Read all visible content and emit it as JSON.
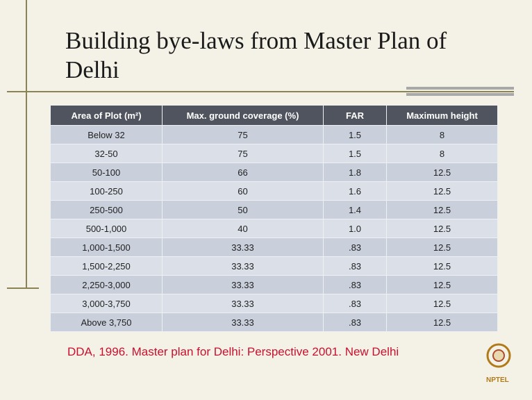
{
  "title": "Building bye-laws from Master Plan of Delhi",
  "table": {
    "header": [
      "Area of Plot (m²)",
      "Max. ground coverage (%)",
      "FAR",
      "Maximum height"
    ],
    "rows": [
      [
        "Below 32",
        "75",
        "1.5",
        "8"
      ],
      [
        "32-50",
        "75",
        "1.5",
        "8"
      ],
      [
        "50-100",
        "66",
        "1.8",
        "12.5"
      ],
      [
        "100-250",
        "60",
        "1.6",
        "12.5"
      ],
      [
        "250-500",
        "50",
        "1.4",
        "12.5"
      ],
      [
        "500-1,000",
        "40",
        "1.0",
        "12.5"
      ],
      [
        "1,000-1,500",
        "33.33",
        ".83",
        "12.5"
      ],
      [
        "1,500-2,250",
        "33.33",
        ".83",
        "12.5"
      ],
      [
        "2,250-3,000",
        "33.33",
        ".83",
        "12.5"
      ],
      [
        "3,000-3,750",
        "33.33",
        ".83",
        "12.5"
      ],
      [
        "Above 3,750",
        "33.33",
        ".83",
        "12.5"
      ]
    ]
  },
  "citation": "DDA, 1996. Master plan for Delhi: Perspective 2001. New Delhi",
  "logo": "NPTEL"
}
